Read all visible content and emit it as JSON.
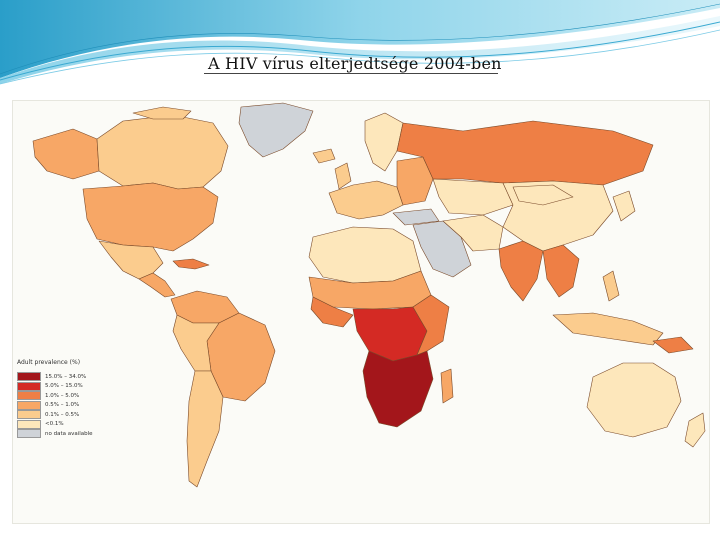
{
  "slide": {
    "title": "A HIV vírus elterjedtsége 2004-ben"
  },
  "map": {
    "legend": {
      "title": "Adult prevalence (%)",
      "items": [
        {
          "label": "15.0% – 34.0%",
          "color": "#a3161b"
        },
        {
          "label": "5.0% – 15.0%",
          "color": "#d42a24"
        },
        {
          "label": "1.0% – 5.0%",
          "color": "#ee7f45"
        },
        {
          "label": "0.5% – 1.0%",
          "color": "#f7a766"
        },
        {
          "label": "0.1% – 0.5%",
          "color": "#fbcc8e"
        },
        {
          "label": "<0.1%",
          "color": "#fde7bb"
        },
        {
          "label": "no data available",
          "color": "#cfd3d8"
        }
      ]
    },
    "colors": {
      "ocean": "#fbfbf7",
      "border": "#7a4a2a"
    }
  }
}
